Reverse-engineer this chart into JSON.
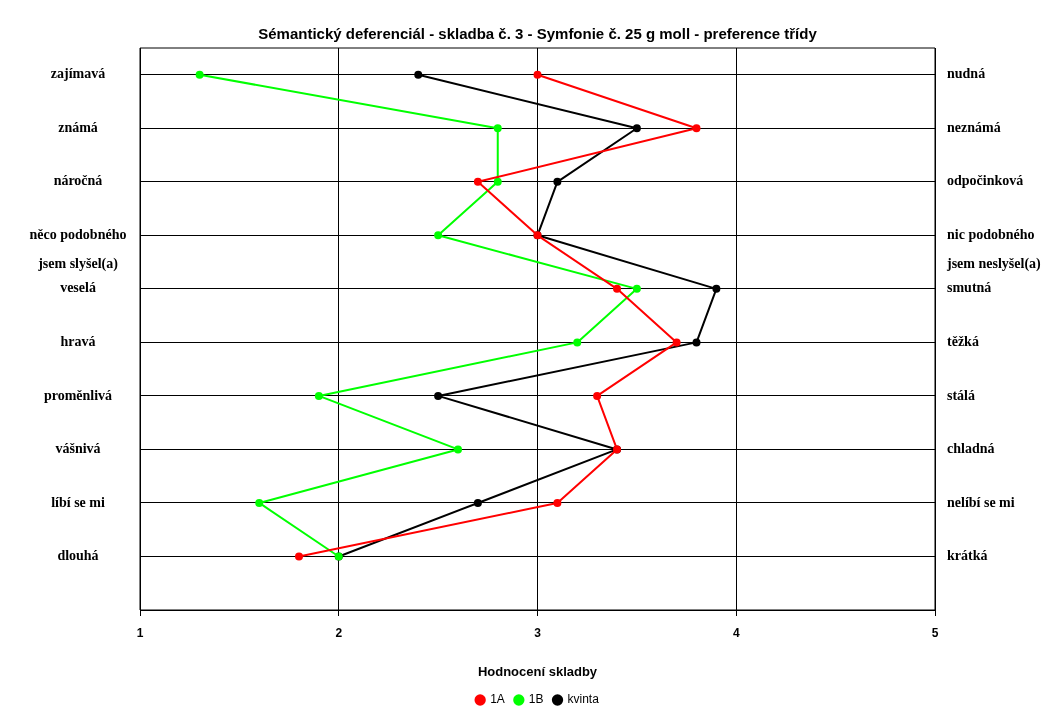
{
  "chart_data": {
    "type": "line",
    "title": "Sémantický deferenciál - skladba č. 3 - Symfonie č. 25 g moll - preference třídy",
    "xlabel": "Hodnocení skladby",
    "orientation": "horizontal",
    "categories": [
      "zajímavá",
      "známá",
      "náročná",
      "něco podobného\njsem slyšel(a)",
      "veselá",
      "hravá",
      "proměnlivá",
      "vášnivá",
      "líbí se mi",
      "dlouhá"
    ],
    "y2_categories": [
      "nudná",
      "neznámá",
      "odpočinková",
      "nic podobného\njsem neslyšel(a)",
      "smutná",
      "těžká",
      "stálá",
      "chladná",
      "nelíbí se mi",
      "krátká"
    ],
    "series": [
      {
        "name": "1A",
        "color": "#ff0000",
        "values": [
          3.0,
          3.8,
          2.7,
          3.0,
          3.4,
          3.7,
          3.3,
          3.4,
          3.1,
          1.8
        ]
      },
      {
        "name": "1B",
        "color": "#00ff00",
        "values": [
          1.3,
          2.8,
          2.8,
          2.5,
          3.5,
          3.2,
          1.9,
          2.6,
          1.6,
          2.0
        ]
      },
      {
        "name": "kvinta",
        "color": "#000000",
        "values": [
          2.4,
          3.5,
          3.1,
          3.0,
          3.9,
          3.8,
          2.5,
          3.4,
          2.7,
          2.0
        ]
      }
    ],
    "xlim": [
      1,
      5
    ],
    "xticks": [
      1,
      2,
      3,
      4,
      5
    ],
    "grid": true,
    "legend": "bottom",
    "marker": "circle",
    "line_style": "solid"
  }
}
